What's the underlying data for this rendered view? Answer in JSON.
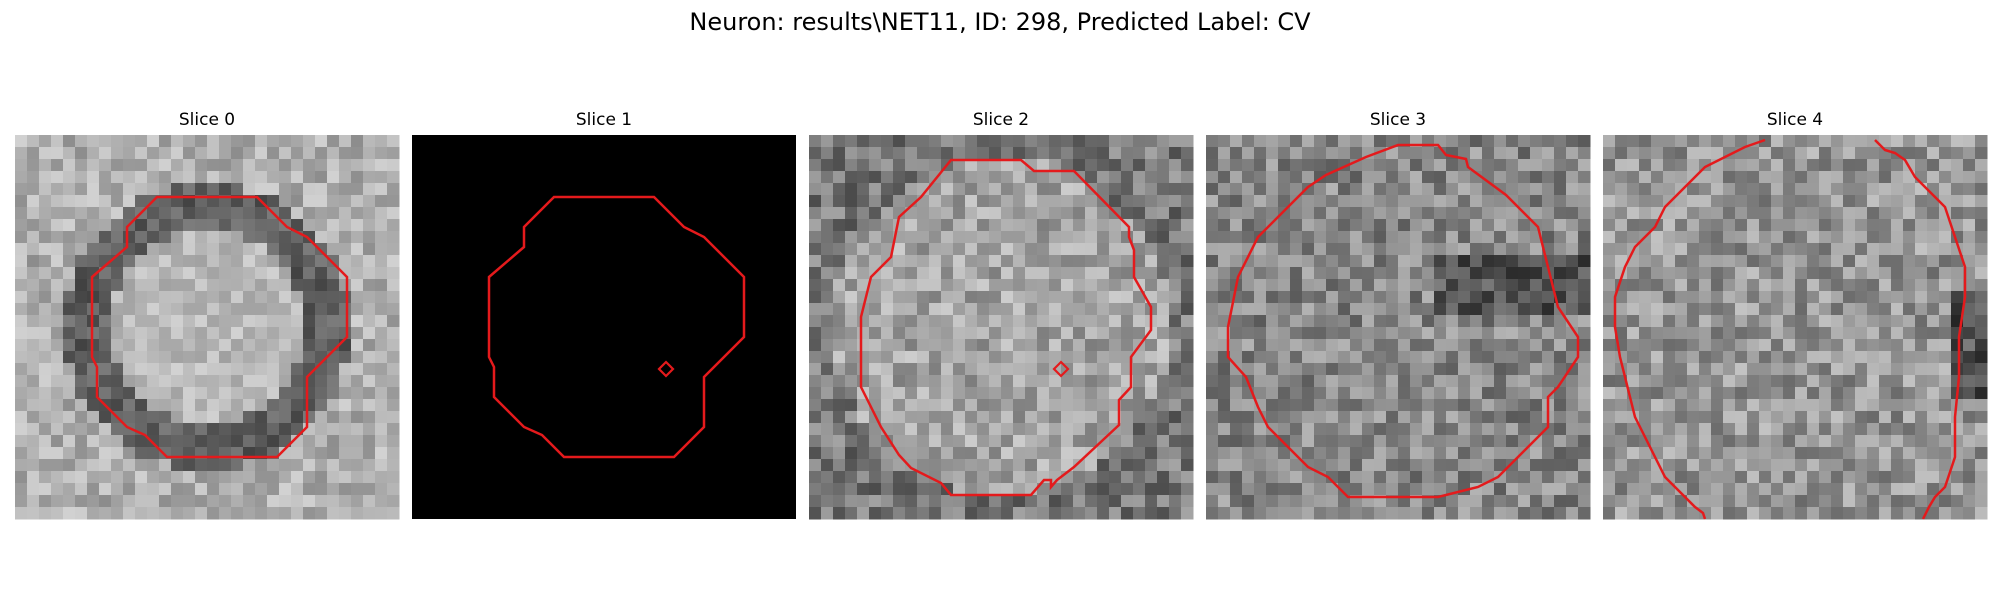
{
  "figure": {
    "title": "Neuron: results\\NET11, ID: 298, Predicted Label: CV"
  },
  "colors": {
    "contour": "#e41a1c",
    "background": "#ffffff"
  },
  "slices": [
    {
      "title": "Slice 0",
      "image": "grayscale-em-texture",
      "bright_center": true,
      "dark_ring": true
    },
    {
      "title": "Slice 1",
      "image": "black",
      "marker": true
    },
    {
      "title": "Slice 2",
      "image": "grayscale-em-texture",
      "marker": true
    },
    {
      "title": "Slice 3",
      "image": "grayscale-em-texture"
    },
    {
      "title": "Slice 4",
      "image": "grayscale-em-texture",
      "dark_right_edge": true
    }
  ]
}
